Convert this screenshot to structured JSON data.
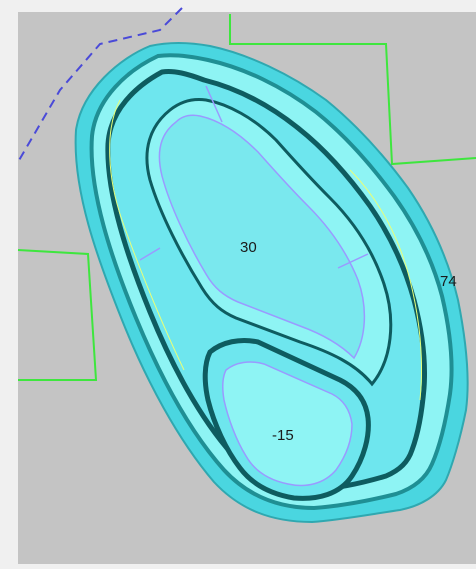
{
  "diagram": {
    "labels": {
      "upper_pit_elevation": "30",
      "lower_pit_elevation": "-15",
      "surface_elevation": "74"
    },
    "colors": {
      "frame": "#f0f0f0",
      "background": "#c4c4c4",
      "boundary_line": "#3ee63e",
      "dashed_line": "#4a4ad8",
      "bench_light": "#8ef4f4",
      "bench_mid": "#4ad6e0",
      "bench_dark": "#1f8f94",
      "bench_deep": "#0e5c60",
      "toe_line": "#9a9aff",
      "crest_line": "#e6ff7a"
    }
  }
}
